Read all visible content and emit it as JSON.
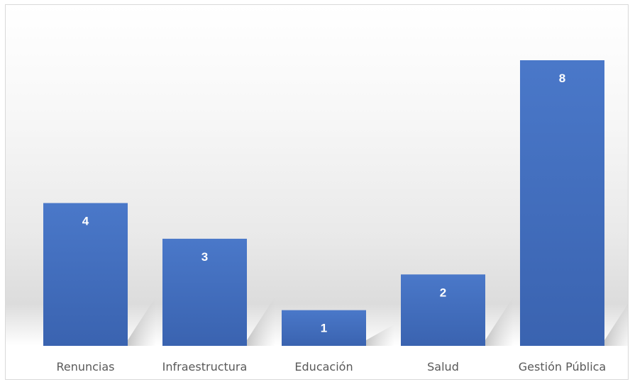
{
  "chart_data": {
    "type": "bar",
    "categories": [
      "Renuncias",
      "Infraestructura",
      "Educación",
      "Salud",
      "Gestión Pública"
    ],
    "values": [
      4,
      3,
      1,
      2,
      8
    ],
    "data_labels": [
      "4",
      "3",
      "1",
      "2",
      "8"
    ],
    "title": "",
    "xlabel": "",
    "ylabel": "",
    "ylim": [
      0,
      8
    ],
    "grid": false,
    "legend": "none",
    "bar_color": "#4472C4"
  }
}
